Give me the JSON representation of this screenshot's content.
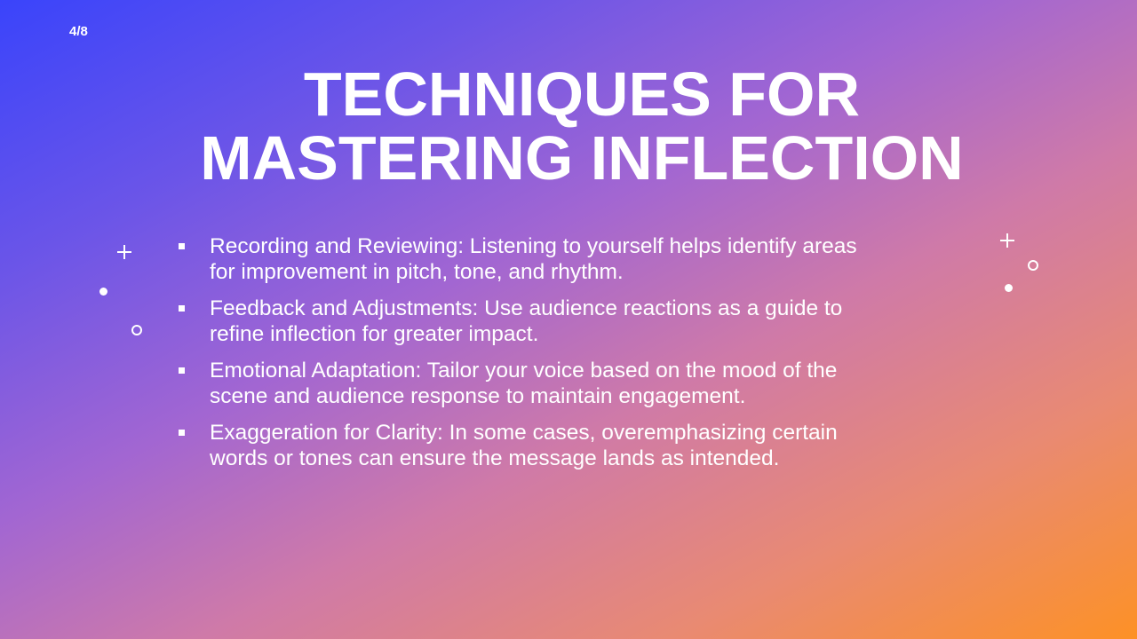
{
  "slide": {
    "counter": "4/8",
    "title_line1": "TECHNIQUES FOR",
    "title_line2": "MASTERING INFLECTION",
    "bullets": [
      {
        "line1": "Recording and Reviewing: Listening to yourself helps identify areas",
        "line2": "for improvement in pitch, tone, and rhythm."
      },
      {
        "line1": "Feedback and Adjustments: Use audience reactions as a guide to",
        "line2": "refine inflection for greater impact."
      },
      {
        "line1": "Emotional Adaptation: Tailor your voice based on the mood of the",
        "line2": "scene and audience response to maintain engagement."
      },
      {
        "line1": "Exaggeration for Clarity: In some cases, overemphasizing certain",
        "line2": "words or tones can ensure the message lands as intended."
      }
    ]
  },
  "decorations": {
    "left": [
      "plus-icon",
      "dot-icon",
      "ring-icon"
    ],
    "right": [
      "plus-icon",
      "ring-icon",
      "dot-icon"
    ]
  },
  "colors": {
    "gradient_start": "#3a44fb",
    "gradient_mid": "#a266d2",
    "gradient_end": "#fd9126",
    "text": "#ffffff"
  }
}
